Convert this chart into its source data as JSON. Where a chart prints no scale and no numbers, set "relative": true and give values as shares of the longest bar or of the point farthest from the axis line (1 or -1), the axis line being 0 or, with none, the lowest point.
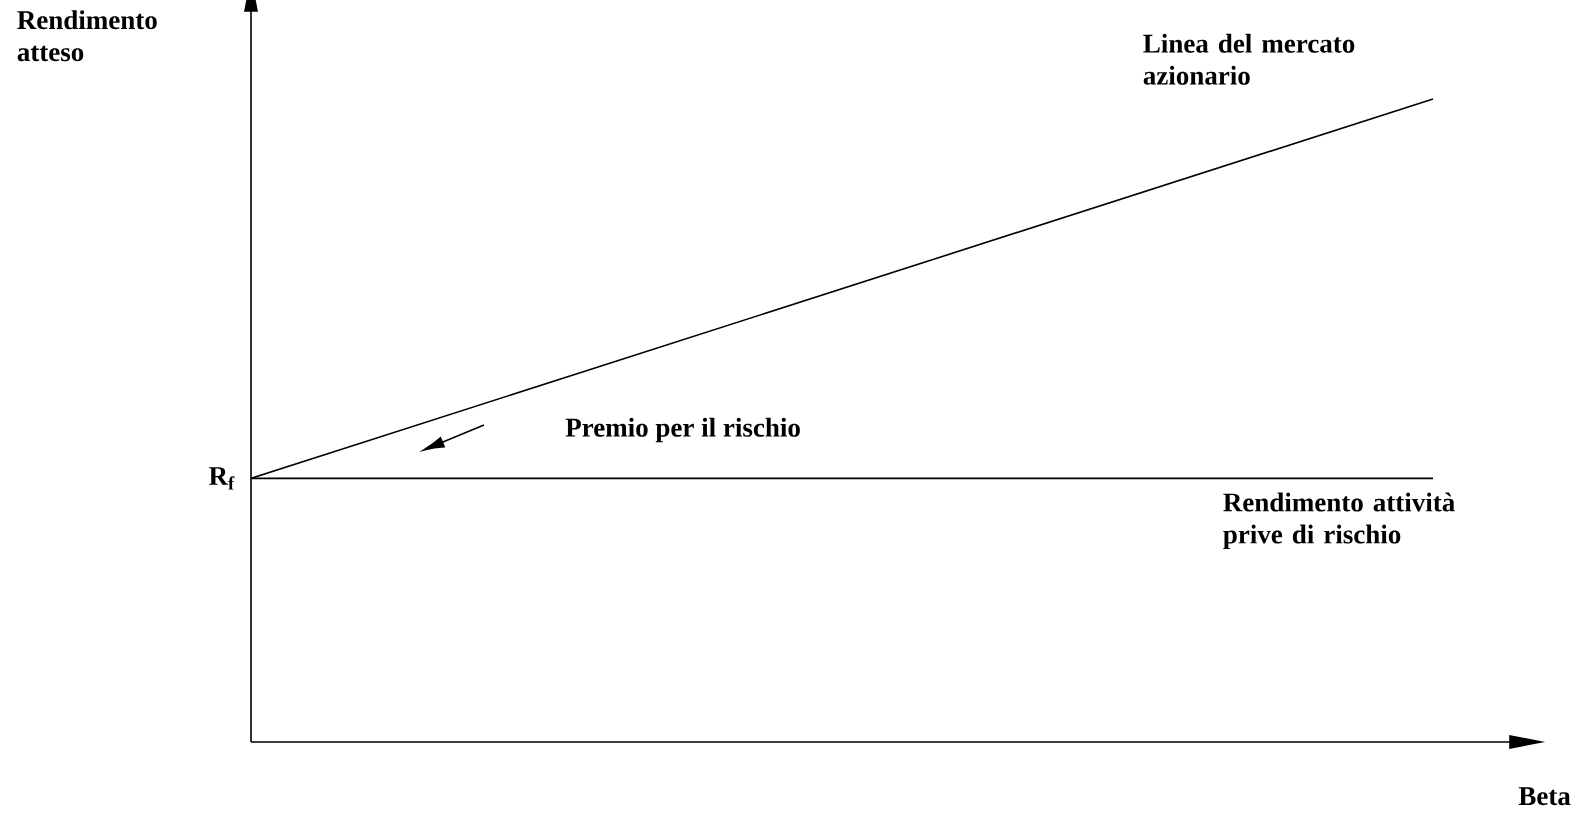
{
  "chart_data": {
    "type": "line",
    "relative": true,
    "xlabel": "Beta",
    "ylabel": "Rendimento atteso",
    "categories": [
      null,
      null
    ],
    "marker": "none",
    "series": [
      {
        "name": "Linea del mercato azionario",
        "color": "#000000",
        "values": [
          0.41,
          1
        ]
      },
      {
        "name": "Rendimento attività prive di rischio",
        "color": "#000000",
        "values": [
          0.41,
          0.41
        ]
      }
    ],
    "annotations": [
      "Premio per il rischio",
      "R$_{f}$"
    ]
  }
}
